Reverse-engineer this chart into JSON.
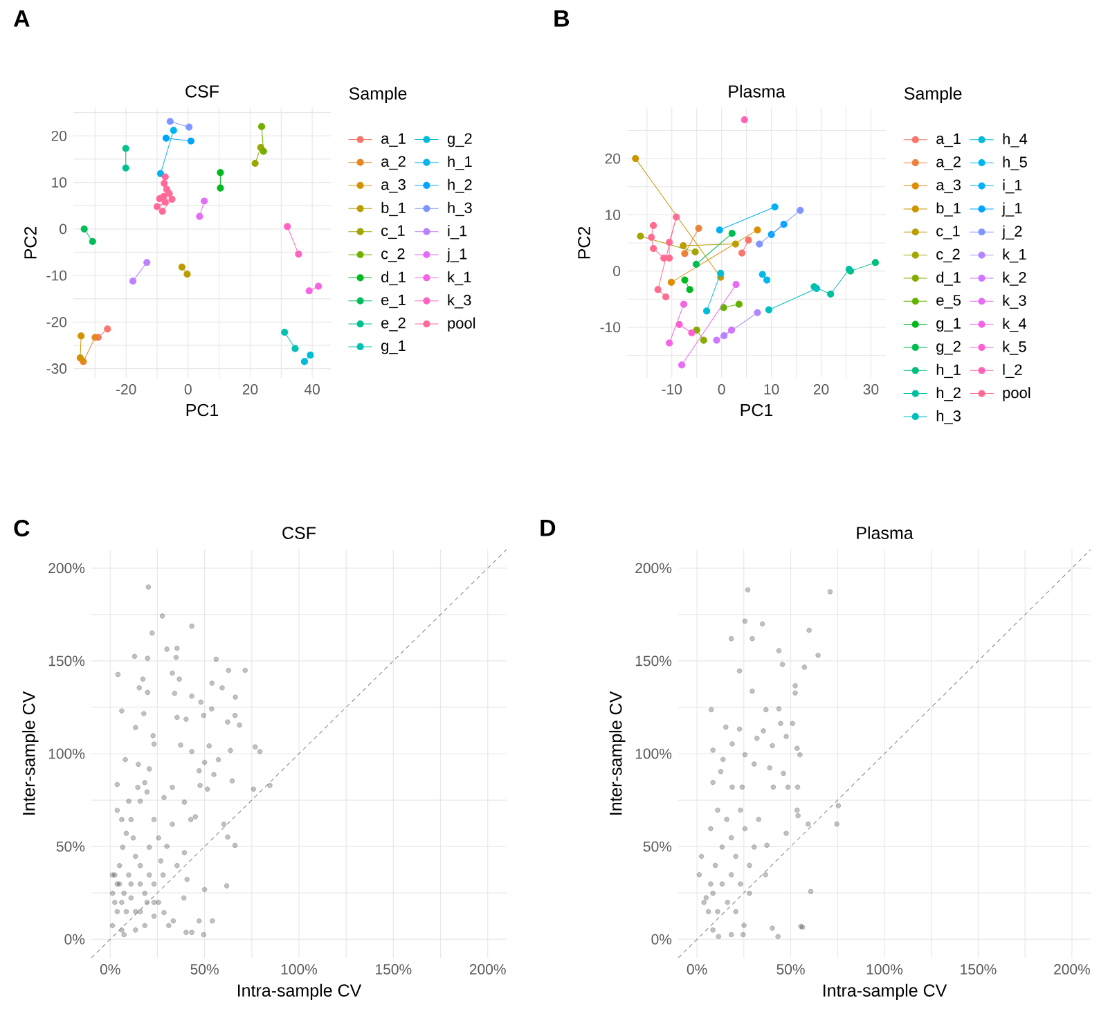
{
  "chart_data": [
    {
      "type": "line",
      "title": "CSF",
      "xlabel": "PC1",
      "ylabel": "PC2",
      "legend_title": "Sample",
      "legend": "right",
      "grid": true,
      "marker": "circle",
      "annotations": [
        "A"
      ],
      "xlim": [
        -37,
        46
      ],
      "ylim": [
        -32,
        26
      ],
      "xticks": [
        {
          "value": -30,
          "label": null
        },
        -20,
        {
          "value": -10,
          "label": null
        },
        0,
        {
          "value": 10,
          "label": null
        },
        20,
        {
          "value": 30,
          "label": null
        },
        40
      ],
      "yticks": [
        -30,
        {
          "value": -25,
          "label": null
        },
        -20,
        {
          "value": -15,
          "label": null
        },
        -10,
        {
          "value": -5,
          "label": null
        },
        0,
        {
          "value": 5,
          "label": null
        },
        10,
        {
          "value": 15,
          "label": null
        },
        20,
        {
          "value": 25,
          "label": null
        }
      ],
      "series": [
        {
          "name": "a_1",
          "color": "#F8766D",
          "x": [
            -29.0,
            -26.0
          ],
          "values": [
            -23.3,
            -21.5
          ]
        },
        {
          "name": "a_2",
          "color": "#E7851E",
          "x": [
            -33.8,
            -30.0
          ],
          "values": [
            -28.5,
            -23.3
          ]
        },
        {
          "name": "a_3",
          "color": "#D39200",
          "x": [
            -34.5,
            -34.8
          ],
          "values": [
            -23.0,
            -27.7
          ]
        },
        {
          "name": "b_1",
          "color": "#BB9D00",
          "x": [
            -2.0,
            -0.3
          ],
          "values": [
            -8.2,
            -9.7
          ]
        },
        {
          "name": "c_1",
          "color": "#9EA700",
          "x": [
            21.6,
            23.4
          ],
          "values": [
            14.1,
            17.5
          ]
        },
        {
          "name": "c_2",
          "color": "#72B000",
          "x": [
            23.7,
            24.3
          ],
          "values": [
            22.0,
            16.7
          ]
        },
        {
          "name": "d_1",
          "color": "#00B81F",
          "x": [
            10.4,
            10.4
          ],
          "values": [
            12.1,
            8.8
          ]
        },
        {
          "name": "e_1",
          "color": "#00BD5C",
          "x": [
            -33.5,
            -30.8
          ],
          "values": [
            0.0,
            -2.7
          ]
        },
        {
          "name": "e_2",
          "color": "#00C08D",
          "x": [
            -20.1,
            -20.1
          ],
          "values": [
            17.3,
            13.1
          ]
        },
        {
          "name": "g_1",
          "color": "#00C1B2",
          "x": [
            31.1,
            34.5
          ],
          "values": [
            -22.2,
            -25.7
          ]
        },
        {
          "name": "g_2",
          "color": "#00BBDA",
          "x": [
            37.5,
            39.4
          ],
          "values": [
            -28.5,
            -27.1
          ]
        },
        {
          "name": "h_1",
          "color": "#00B4F0",
          "x": [
            -8.9,
            -4.7
          ],
          "values": [
            11.9,
            21.2
          ]
        },
        {
          "name": "h_2",
          "color": "#00A5FF",
          "x": [
            -7.1,
            0.9
          ],
          "values": [
            19.5,
            18.9
          ]
        },
        {
          "name": "h_3",
          "color": "#7F96FF",
          "x": [
            -5.8,
            0.3
          ],
          "values": [
            23.1,
            21.9
          ]
        },
        {
          "name": "i_1",
          "color": "#BF80FF",
          "x": [
            -17.8,
            -13.3
          ],
          "values": [
            -11.2,
            -7.2
          ]
        },
        {
          "name": "j_1",
          "color": "#E26EF7",
          "x": [
            3.7,
            5.2
          ],
          "values": [
            2.7,
            6.0
          ]
        },
        {
          "name": "k_1",
          "color": "#F564E3",
          "x": [
            39.0,
            42.0
          ],
          "values": [
            -13.3,
            -12.3
          ]
        },
        {
          "name": "k_3",
          "color": "#FF62BF",
          "x": [
            32.0,
            35.6
          ],
          "values": [
            0.5,
            -5.4
          ]
        },
        {
          "name": "pool",
          "color": "#FF6A98",
          "x": [
            -7.4,
            -7.7,
            -6.9,
            -7.9,
            -6.1,
            -9.2,
            -7.4,
            -10.0,
            -5.2,
            -8.3
          ],
          "values": [
            11.2,
            9.8,
            8.5,
            7.0,
            7.6,
            6.5,
            5.8,
            4.8,
            6.4,
            3.8
          ]
        }
      ]
    },
    {
      "type": "line",
      "title": "Plasma",
      "xlabel": "PC1",
      "ylabel": "PC2",
      "legend_title": "Sample",
      "legend": "right",
      "grid": true,
      "marker": "circle",
      "annotations": [
        "B"
      ],
      "xlim": [
        -19,
        33
      ],
      "ylim": [
        -19,
        29
      ],
      "xticks": [
        {
          "value": -15,
          "label": null
        },
        -10,
        {
          "value": -5,
          "label": null
        },
        0,
        {
          "value": 5,
          "label": null
        },
        10,
        {
          "value": 15,
          "label": null
        },
        20,
        {
          "value": 25,
          "label": null
        },
        30
      ],
      "yticks": [
        {
          "value": -15,
          "label": null
        },
        -10,
        {
          "value": -5,
          "label": null
        },
        0,
        {
          "value": 5,
          "label": null
        },
        10,
        {
          "value": 15,
          "label": null
        },
        20,
        {
          "value": 25,
          "label": null
        }
      ],
      "series": [
        {
          "name": "a_1",
          "color": "#F8766D",
          "x": [
            4.1,
            5.4
          ],
          "values": [
            3.2,
            5.5
          ]
        },
        {
          "name": "a_2",
          "color": "#EC823C",
          "x": [
            -4.6,
            -7.4
          ],
          "values": [
            7.6,
            3.1
          ]
        },
        {
          "name": "a_3",
          "color": "#DF8C00",
          "x": [
            -10.1,
            7.2
          ],
          "values": [
            -2.0,
            7.3
          ]
        },
        {
          "name": "b_1",
          "color": "#CC9600",
          "x": [
            -17.3,
            -0.2
          ],
          "values": [
            20.0,
            -1.1
          ]
        },
        {
          "name": "c_1",
          "color": "#BB9D00",
          "x": [
            -7.7,
            2.8
          ],
          "values": [
            4.5,
            4.8
          ]
        },
        {
          "name": "c_2",
          "color": "#A3A500",
          "x": [
            -16.3,
            -5.3
          ],
          "values": [
            6.2,
            3.4
          ]
        },
        {
          "name": "d_1",
          "color": "#87AB00",
          "x": [
            -5.0,
            -3.6
          ],
          "values": [
            -10.5,
            -12.3
          ]
        },
        {
          "name": "e_5",
          "color": "#63B200",
          "x": [
            0.4,
            3.5
          ],
          "values": [
            -6.5,
            -5.9
          ]
        },
        {
          "name": "g_1",
          "color": "#00B81F",
          "x": [
            -7.4,
            -6.4
          ],
          "values": [
            -1.6,
            -3.3
          ]
        },
        {
          "name": "g_2",
          "color": "#00BC51",
          "x": [
            -5.1,
            2.1
          ],
          "values": [
            1.2,
            6.7
          ]
        },
        {
          "name": "h_1",
          "color": "#00BF7D",
          "x": [
            25.9,
            30.9
          ],
          "values": [
            0.0,
            1.5
          ]
        },
        {
          "name": "h_2",
          "color": "#00C0A0",
          "x": [
            18.6,
            21.9,
            25.6
          ],
          "values": [
            -2.8,
            -4.1,
            0.3
          ]
        },
        {
          "name": "h_3",
          "color": "#00C0BE",
          "x": [
            9.5,
            19.1
          ],
          "values": [
            -6.9,
            -3.1
          ]
        },
        {
          "name": "h_4",
          "color": "#00BCD8",
          "x": [
            -0.2,
            -3.0
          ],
          "values": [
            -0.4,
            -7.1
          ]
        },
        {
          "name": "h_5",
          "color": "#00B6EB",
          "x": [
            8.2,
            9.1
          ],
          "values": [
            -0.6,
            -1.6
          ]
        },
        {
          "name": "i_1",
          "color": "#00B0F6",
          "x": [
            -0.4,
            10.7
          ],
          "values": [
            7.3,
            11.4
          ]
        },
        {
          "name": "j_1",
          "color": "#00A5FF",
          "x": [
            12.5,
            10.0
          ],
          "values": [
            8.3,
            6.5
          ]
        },
        {
          "name": "j_2",
          "color": "#7F96FF",
          "x": [
            7.6,
            15.8
          ],
          "values": [
            4.8,
            10.8
          ]
        },
        {
          "name": "k_1",
          "color": "#B186FF",
          "x": [
            7.2,
            0.5
          ],
          "values": [
            -7.4,
            -11.5
          ]
        },
        {
          "name": "k_2",
          "color": "#D078FF",
          "x": [
            -1.0,
            2.0
          ],
          "values": [
            -12.3,
            -10.5
          ]
        },
        {
          "name": "k_3",
          "color": "#E76BF3",
          "x": [
            2.9,
            -8.0
          ],
          "values": [
            -2.4,
            -16.7
          ]
        },
        {
          "name": "k_4",
          "color": "#F564E3",
          "x": [
            -7.6,
            -10.5
          ],
          "values": [
            -5.9,
            -12.8
          ]
        },
        {
          "name": "k_5",
          "color": "#FD61D1",
          "x": [
            -8.5,
            -6.0
          ],
          "values": [
            -9.5,
            -11.0
          ]
        },
        {
          "name": "l_2",
          "color": "#FF62B9",
          "x": [
            4.6
          ],
          "values": [
            26.9
          ]
        },
        {
          "name": "pool",
          "color": "#FF6C92",
          "x": [
            -13.7,
            -14.1,
            -13.7,
            -11.6,
            -10.5,
            -10.5,
            -9.1,
            -12.8,
            -11.2
          ],
          "values": [
            8.1,
            6.0,
            4.0,
            2.3,
            2.3,
            5.1,
            9.6,
            -3.3,
            -4.6
          ]
        }
      ]
    },
    {
      "type": "scatter",
      "title": "CSF",
      "xlabel": "Intra-sample CV",
      "ylabel": "Inter-sample CV",
      "grid": true,
      "marker": "circle",
      "annotations": [
        "C"
      ],
      "xlim": [
        -10,
        210
      ],
      "ylim": [
        -10,
        210
      ],
      "xticks": [
        {
          "value": 0,
          "label": "0%"
        },
        {
          "value": 25,
          "label": null
        },
        {
          "value": 50,
          "label": "50%"
        },
        {
          "value": 75,
          "label": null
        },
        {
          "value": 100,
          "label": "100%"
        },
        {
          "value": 125,
          "label": null
        },
        {
          "value": 150,
          "label": "150%"
        },
        {
          "value": 175,
          "label": null
        },
        {
          "value": 200,
          "label": "200%"
        }
      ],
      "yticks": [
        {
          "value": 0,
          "label": "0%"
        },
        {
          "value": 25,
          "label": null
        },
        {
          "value": 50,
          "label": "50%"
        },
        {
          "value": 75,
          "label": null
        },
        {
          "value": 100,
          "label": "100%"
        },
        {
          "value": 125,
          "label": null
        },
        {
          "value": 150,
          "label": "150%"
        },
        {
          "value": 175,
          "label": null
        },
        {
          "value": 200,
          "label": "200%"
        }
      ],
      "series": [
        {
          "color": "#333333",
          "x": [
            20.2,
            27.6,
            22.2,
            43.2,
            30.0,
            35.4,
            12.9,
            19.8,
            34.9,
            56.1,
            4.1,
            32.9,
            36.6,
            62.7,
            71.5,
            17.3,
            53.9,
            59.3,
            19.8,
            15.4,
            34.1,
            43.2,
            66.3,
            48.0,
            6.1,
            49.5,
            53.7,
            66.1,
            17.8,
            35.4,
            40.2,
            62.2,
            68.5,
            13.4,
            22.7,
            37.3,
            43.2,
            52.4,
            76.8,
            79.3,
            63.7,
            57.3,
            50.0,
            23.2,
            8.0,
            47.1,
            54.9,
            14.9,
            64.6,
            47.6,
            51.5,
            75.9,
            84.6,
            32.9,
            3.7,
            28.5,
            39.3,
            42.7,
            45.1,
            60.2,
            62.2,
            66.1,
            32.9,
            39.3,
            30.0,
            35.4,
            40.7,
            61.7,
            50.0,
            28.5,
            33.4,
            47.1,
            54.1,
            40.2,
            43.2,
            49.5,
            13.4,
            7.3,
            31.0,
            23.2,
            19.5,
            39.0,
            1.2,
            2.4,
            3.7,
            4.9,
            1.2,
            6.6,
            8.5,
            11.0,
            15.9,
            18.3,
            19.5,
            23.2,
            25.6,
            26.8,
            20.7,
            15.9,
            11.0,
            8.5,
            13.4,
            18.3,
            6.1,
            3.7,
            9.8,
            13.4,
            7.3,
            15.9,
            20.7,
            12.2,
            6.1,
            3.7,
            9.8,
            14.6,
            20.7,
            4.9,
            1.2,
            2.4,
            11.0,
            18.3,
            23.2,
            28.0,
            25.6,
            6.1,
            15.9,
            23.2
          ],
          "values": [
            189.8,
            174.2,
            165.0,
            168.7,
            156.3,
            156.8,
            152.4,
            151.4,
            151.9,
            150.9,
            142.7,
            143.4,
            140.2,
            144.9,
            144.9,
            140.2,
            138.0,
            135.5,
            133.0,
            135.5,
            132.5,
            131.0,
            130.5,
            127.8,
            123.1,
            120.6,
            124.1,
            120.6,
            121.6,
            119.6,
            118.6,
            117.1,
            115.4,
            114.1,
            109.7,
            104.7,
            101.2,
            104.2,
            103.7,
            101.2,
            101.7,
            96.8,
            95.3,
            105.2,
            96.8,
            90.8,
            88.8,
            94.3,
            85.4,
            82.9,
            80.9,
            80.9,
            82.9,
            81.9,
            83.4,
            76.4,
            73.9,
            64.5,
            66.0,
            62.0,
            55.1,
            50.6,
            62.0,
            46.7,
            50.1,
            39.7,
            32.3,
            28.8,
            26.8,
            14.4,
            9.9,
            9.9,
            9.9,
            3.7,
            3.7,
            2.5,
            5.0,
            2.5,
            7.4,
            12.4,
            19.9,
            22.3,
            7.4,
            19.9,
            29.8,
            39.7,
            34.7,
            49.6,
            57.1,
            64.5,
            74.4,
            84.4,
            79.4,
            64.5,
            54.6,
            42.2,
            34.7,
            29.8,
            22.3,
            14.9,
            14.9,
            7.4,
            5.0,
            14.9,
            34.7,
            44.7,
            24.8,
            39.7,
            49.6,
            54.6,
            64.5,
            69.5,
            74.4,
            81.9,
            91.8,
            29.8,
            24.8,
            34.7,
            29.8,
            24.8,
            29.8,
            34.7,
            19.9,
            19.9,
            14.9,
            19.9
          ]
        },
        {
          "type": "line",
          "color": "#808080",
          "line_style": "dashed",
          "marker": "none",
          "x": [
            -10,
            210
          ],
          "values": [
            -10,
            210
          ]
        }
      ]
    },
    {
      "type": "scatter",
      "title": "Plasma",
      "xlabel": "Intra-sample CV",
      "ylabel": "Inter-sample CV",
      "grid": true,
      "marker": "circle",
      "annotations": [
        "D"
      ],
      "xlim": [
        -10,
        210
      ],
      "ylim": [
        -10,
        210
      ],
      "xticks": [
        {
          "value": 0,
          "label": "0%"
        },
        {
          "value": 25,
          "label": null
        },
        {
          "value": 50,
          "label": "50%"
        },
        {
          "value": 75,
          "label": null
        },
        {
          "value": 100,
          "label": "100%"
        },
        {
          "value": 125,
          "label": null
        },
        {
          "value": 150,
          "label": "150%"
        },
        {
          "value": 175,
          "label": null
        },
        {
          "value": 200,
          "label": "200%"
        }
      ],
      "yticks": [
        {
          "value": 0,
          "label": "0%"
        },
        {
          "value": 25,
          "label": null
        },
        {
          "value": 50,
          "label": "50%"
        },
        {
          "value": 75,
          "label": null
        },
        {
          "value": 100,
          "label": "100%"
        },
        {
          "value": 125,
          "label": null
        },
        {
          "value": 150,
          "label": "150%"
        },
        {
          "value": 175,
          "label": null
        },
        {
          "value": 200,
          "label": "200%"
        }
      ],
      "series": [
        {
          "color": "#333333",
          "x": [
            27.1,
            71.0,
            25.6,
            34.9,
            59.8,
            18.3,
            29.5,
            64.6,
            43.7,
            22.7,
            57.3,
            45.6,
            29.5,
            52.4,
            52.4,
            7.6,
            36.8,
            43.7,
            15.4,
            22.7,
            35.4,
            44.6,
            51.0,
            8.5,
            18.8,
            25.6,
            32.0,
            40.2,
            47.6,
            53.4,
            54.9,
            13.9,
            12.7,
            30.5,
            38.8,
            46.1,
            48.5,
            40.7,
            53.7,
            8.5,
            18.8,
            24.1,
            75.4,
            74.6,
            59.3,
            53.4,
            53.9,
            47.6,
            37.3,
            60.7,
            40.2,
            43.2,
            55.4,
            56.3,
            11.5,
            18.3,
            24.6,
            25.1,
            1.2,
            3.7,
            6.1,
            8.5,
            13.4,
            18.3,
            20.7,
            18.3,
            15.9,
            13.4,
            9.8,
            7.3,
            4.9,
            11.0,
            16.3,
            23.2,
            28.0,
            30.5,
            25.6,
            23.2,
            11.0,
            7.3,
            2.4,
            32.9,
            36.6,
            28.0,
            20.7,
            8.5
          ],
          "values": [
            188.3,
            187.3,
            171.4,
            169.9,
            166.5,
            162.0,
            162.0,
            153.0,
            155.5,
            144.6,
            146.6,
            148.1,
            133.7,
            136.6,
            132.7,
            123.7,
            123.7,
            124.2,
            114.3,
            113.3,
            112.3,
            116.3,
            116.3,
            101.9,
            105.3,
            99.4,
            108.3,
            104.3,
            109.3,
            102.9,
            99.4,
            96.9,
            90.4,
            94.4,
            92.4,
            89.4,
            82.0,
            82.0,
            82.0,
            84.5,
            82.0,
            82.0,
            72.0,
            62.1,
            62.1,
            69.6,
            66.6,
            57.1,
            50.7,
            25.8,
            6.0,
            1.5,
            7.0,
            6.5,
            1.5,
            2.5,
            2.5,
            7.5,
            34.8,
            19.9,
            14.9,
            24.8,
            29.8,
            34.8,
            44.7,
            54.7,
            64.6,
            49.7,
            39.8,
            29.8,
            22.4,
            14.9,
            19.9,
            29.8,
            39.8,
            49.7,
            59.6,
            69.6,
            69.6,
            59.6,
            44.7,
            64.6,
            34.8,
            24.8,
            14.9,
            5.0
          ]
        },
        {
          "type": "line",
          "color": "#808080",
          "line_style": "dashed",
          "marker": "none",
          "x": [
            -10,
            210
          ],
          "values": [
            -10,
            210
          ]
        }
      ]
    }
  ]
}
